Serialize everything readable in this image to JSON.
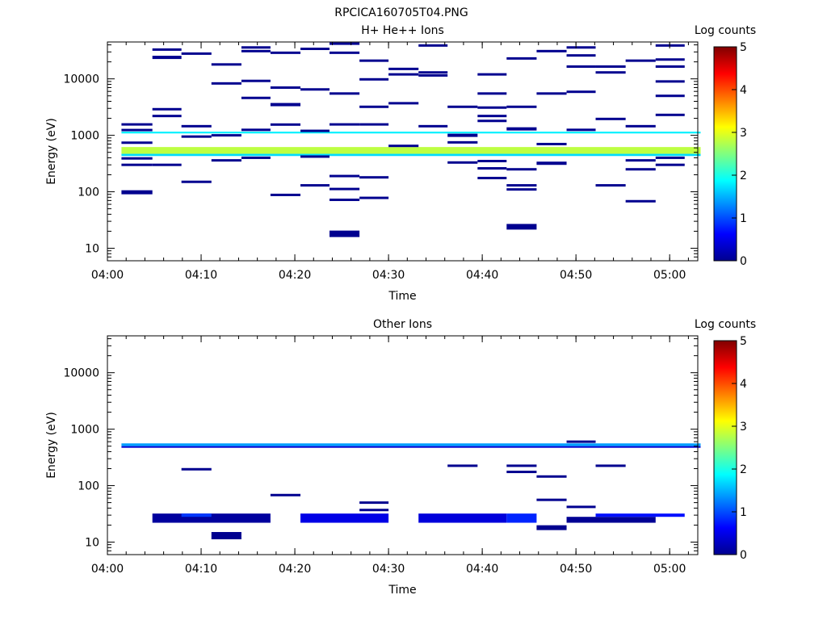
{
  "file_title": "RPCICA160705T04.PNG",
  "chart_data": [
    {
      "type": "heatmap",
      "title": "H+ He++ Ions",
      "xlabel": "Time",
      "ylabel": "Energy (eV)",
      "y_scale": "log",
      "ylim": [
        6,
        45000
      ],
      "xlim": [
        "04:00",
        "05:03"
      ],
      "x_ticks": [
        "04:00",
        "04:10",
        "04:20",
        "04:30",
        "04:40",
        "04:50",
        "05:00"
      ],
      "y_ticks": [
        "10",
        "100",
        "1000",
        "10000"
      ],
      "colorbar": {
        "label": "Log counts",
        "min": 0,
        "max": 5,
        "ticks": [
          "0",
          "1",
          "2",
          "3",
          "4",
          "5"
        ]
      },
      "bands": [
        {
          "t0": 1.5,
          "t1": 63.3,
          "e0": 470,
          "e1": 620,
          "log_counts": 2.8
        },
        {
          "t0": 1.5,
          "t1": 63.3,
          "e0": 1080,
          "e1": 1160,
          "log_counts": 1.8
        },
        {
          "t0": 1.5,
          "t1": 63.3,
          "e0": 430,
          "e1": 470,
          "log_counts": 1.7
        }
      ],
      "segments": [
        {
          "t0": 1.5,
          "t1": 4.8,
          "e": 1560
        },
        {
          "t0": 1.5,
          "t1": 4.8,
          "e": 1240
        },
        {
          "t0": 1.5,
          "t1": 4.8,
          "e": 740
        },
        {
          "t0": 1.5,
          "t1": 4.8,
          "e": 390
        },
        {
          "t0": 1.5,
          "t1": 4.8,
          "e": 300
        },
        {
          "t0": 1.5,
          "t1": 4.8,
          "e": 98,
          "w": 5
        },
        {
          "t0": 4.8,
          "t1": 7.9,
          "e": 33000
        },
        {
          "t0": 4.8,
          "t1": 7.9,
          "e": 24000,
          "w": 4
        },
        {
          "t0": 4.8,
          "t1": 7.9,
          "e": 2900
        },
        {
          "t0": 4.8,
          "t1": 7.9,
          "e": 2200
        },
        {
          "t0": 4.8,
          "t1": 7.9,
          "e": 300
        },
        {
          "t0": 7.9,
          "t1": 11.1,
          "e": 28000
        },
        {
          "t0": 7.9,
          "t1": 11.1,
          "e": 1450
        },
        {
          "t0": 7.9,
          "t1": 11.1,
          "e": 950
        },
        {
          "t0": 7.9,
          "t1": 11.1,
          "e": 150
        },
        {
          "t0": 11.1,
          "t1": 14.3,
          "e": 18000
        },
        {
          "t0": 11.1,
          "t1": 14.3,
          "e": 8300
        },
        {
          "t0": 11.1,
          "t1": 14.3,
          "e": 1000
        },
        {
          "t0": 11.1,
          "t1": 14.3,
          "e": 360
        },
        {
          "t0": 14.3,
          "t1": 17.4,
          "e": 36000
        },
        {
          "t0": 14.3,
          "t1": 17.4,
          "e": 31000
        },
        {
          "t0": 14.3,
          "t1": 17.4,
          "e": 4600
        },
        {
          "t0": 14.3,
          "t1": 17.4,
          "e": 9200
        },
        {
          "t0": 14.3,
          "t1": 17.4,
          "e": 1250
        },
        {
          "t0": 14.3,
          "t1": 17.4,
          "e": 400
        },
        {
          "t0": 17.4,
          "t1": 20.6,
          "e": 29000
        },
        {
          "t0": 17.4,
          "t1": 20.6,
          "e": 7000
        },
        {
          "t0": 17.4,
          "t1": 20.6,
          "e": 3500,
          "w": 4
        },
        {
          "t0": 17.4,
          "t1": 20.6,
          "e": 1550
        },
        {
          "t0": 17.4,
          "t1": 20.6,
          "e": 88
        },
        {
          "t0": 20.6,
          "t1": 23.7,
          "e": 34000
        },
        {
          "t0": 20.6,
          "t1": 23.7,
          "e": 6500
        },
        {
          "t0": 20.6,
          "t1": 23.7,
          "e": 1200
        },
        {
          "t0": 20.6,
          "t1": 23.7,
          "e": 420
        },
        {
          "t0": 20.6,
          "t1": 23.7,
          "e": 130
        },
        {
          "t0": 23.7,
          "t1": 26.9,
          "e": 42000
        },
        {
          "t0": 23.7,
          "t1": 26.9,
          "e": 29000
        },
        {
          "t0": 23.7,
          "t1": 26.9,
          "e": 5500
        },
        {
          "t0": 23.7,
          "t1": 26.9,
          "e": 1560
        },
        {
          "t0": 23.7,
          "t1": 26.9,
          "e": 190
        },
        {
          "t0": 23.7,
          "t1": 26.9,
          "e": 112
        },
        {
          "t0": 23.7,
          "t1": 26.9,
          "e": 72
        },
        {
          "t0": 23.7,
          "t1": 26.9,
          "e": 18,
          "w": 8
        },
        {
          "t0": 26.9,
          "t1": 30.0,
          "e": 21000
        },
        {
          "t0": 26.9,
          "t1": 30.0,
          "e": 9800
        },
        {
          "t0": 26.9,
          "t1": 30.0,
          "e": 3200
        },
        {
          "t0": 26.9,
          "t1": 30.0,
          "e": 1560
        },
        {
          "t0": 26.9,
          "t1": 30.0,
          "e": 180
        },
        {
          "t0": 26.9,
          "t1": 30.0,
          "e": 78
        },
        {
          "t0": 30.0,
          "t1": 33.2,
          "e": 15000
        },
        {
          "t0": 30.0,
          "t1": 33.2,
          "e": 12000
        },
        {
          "t0": 30.0,
          "t1": 33.2,
          "e": 3700
        },
        {
          "t0": 30.0,
          "t1": 33.2,
          "e": 650
        },
        {
          "t0": 33.2,
          "t1": 36.3,
          "e": 39000
        },
        {
          "t0": 33.2,
          "t1": 36.3,
          "e": 13000
        },
        {
          "t0": 33.2,
          "t1": 36.3,
          "e": 11500
        },
        {
          "t0": 33.2,
          "t1": 36.3,
          "e": 1450
        },
        {
          "t0": 36.3,
          "t1": 39.5,
          "e": 3200
        },
        {
          "t0": 36.3,
          "t1": 39.5,
          "e": 1000,
          "w": 4
        },
        {
          "t0": 36.3,
          "t1": 39.5,
          "e": 750
        },
        {
          "t0": 36.3,
          "t1": 39.5,
          "e": 330
        },
        {
          "t0": 39.5,
          "t1": 42.6,
          "e": 12000
        },
        {
          "t0": 39.5,
          "t1": 42.6,
          "e": 5500
        },
        {
          "t0": 39.5,
          "t1": 42.6,
          "e": 3100
        },
        {
          "t0": 39.5,
          "t1": 42.6,
          "e": 2200
        },
        {
          "t0": 39.5,
          "t1": 42.6,
          "e": 1800
        },
        {
          "t0": 39.5,
          "t1": 42.6,
          "e": 350
        },
        {
          "t0": 39.5,
          "t1": 42.6,
          "e": 260
        },
        {
          "t0": 39.5,
          "t1": 42.6,
          "e": 175
        },
        {
          "t0": 42.6,
          "t1": 45.8,
          "e": 23000
        },
        {
          "t0": 42.6,
          "t1": 45.8,
          "e": 3200
        },
        {
          "t0": 42.6,
          "t1": 45.8,
          "e": 1300,
          "w": 4
        },
        {
          "t0": 42.6,
          "t1": 45.8,
          "e": 250
        },
        {
          "t0": 42.6,
          "t1": 45.8,
          "e": 130
        },
        {
          "t0": 42.6,
          "t1": 45.8,
          "e": 110
        },
        {
          "t0": 42.6,
          "t1": 45.8,
          "e": 24,
          "w": 7
        },
        {
          "t0": 45.8,
          "t1": 49.0,
          "e": 31000
        },
        {
          "t0": 45.8,
          "t1": 49.0,
          "e": 5500
        },
        {
          "t0": 45.8,
          "t1": 49.0,
          "e": 700
        },
        {
          "t0": 45.8,
          "t1": 49.0,
          "e": 320,
          "w": 4
        },
        {
          "t0": 49.0,
          "t1": 52.1,
          "e": 36000
        },
        {
          "t0": 49.0,
          "t1": 52.1,
          "e": 26000
        },
        {
          "t0": 49.0,
          "t1": 52.1,
          "e": 16500
        },
        {
          "t0": 49.0,
          "t1": 52.1,
          "e": 5900
        },
        {
          "t0": 49.0,
          "t1": 52.1,
          "e": 1250
        },
        {
          "t0": 52.1,
          "t1": 55.3,
          "e": 16500
        },
        {
          "t0": 52.1,
          "t1": 55.3,
          "e": 13000
        },
        {
          "t0": 52.1,
          "t1": 55.3,
          "e": 1950
        },
        {
          "t0": 52.1,
          "t1": 55.3,
          "e": 130
        },
        {
          "t0": 55.3,
          "t1": 58.5,
          "e": 21000
        },
        {
          "t0": 55.3,
          "t1": 58.5,
          "e": 1450
        },
        {
          "t0": 55.3,
          "t1": 58.5,
          "e": 360
        },
        {
          "t0": 55.3,
          "t1": 58.5,
          "e": 250
        },
        {
          "t0": 55.3,
          "t1": 58.5,
          "e": 68
        },
        {
          "t0": 58.5,
          "t1": 61.6,
          "e": 39000
        },
        {
          "t0": 58.5,
          "t1": 61.6,
          "e": 22000
        },
        {
          "t0": 58.5,
          "t1": 61.6,
          "e": 16500
        },
        {
          "t0": 58.5,
          "t1": 61.6,
          "e": 9000
        },
        {
          "t0": 58.5,
          "t1": 61.6,
          "e": 5000
        },
        {
          "t0": 58.5,
          "t1": 61.6,
          "e": 2300
        },
        {
          "t0": 58.5,
          "t1": 61.6,
          "e": 400
        },
        {
          "t0": 58.5,
          "t1": 61.6,
          "e": 300
        }
      ]
    },
    {
      "type": "heatmap",
      "title": "Other Ions",
      "xlabel": "Time",
      "ylabel": "Energy (eV)",
      "y_scale": "log",
      "ylim": [
        6,
        45000
      ],
      "xlim": [
        "04:00",
        "05:03"
      ],
      "x_ticks": [
        "04:00",
        "04:10",
        "04:20",
        "04:30",
        "04:40",
        "04:50",
        "05:00"
      ],
      "y_ticks": [
        "10",
        "100",
        "1000",
        "10000"
      ],
      "colorbar": {
        "label": "Log counts",
        "min": 0,
        "max": 5,
        "ticks": [
          "0",
          "1",
          "2",
          "3",
          "4",
          "5"
        ]
      },
      "bands": [
        {
          "t0": 1.5,
          "t1": 63.3,
          "e0": 500,
          "e1": 560,
          "log_counts": 1.4
        },
        {
          "t0": 1.5,
          "t1": 63.3,
          "e0": 470,
          "e1": 500,
          "log_counts": 0.4
        },
        {
          "t0": 4.8,
          "t1": 17.4,
          "e0": 22,
          "e1": 32,
          "log_counts": 0.15
        },
        {
          "t0": 7.9,
          "t1": 11.1,
          "e0": 28,
          "e1": 32,
          "log_counts": 0.9
        },
        {
          "t0": 20.6,
          "t1": 30.0,
          "e0": 22,
          "e1": 32,
          "log_counts": 0.5
        },
        {
          "t0": 33.2,
          "t1": 42.6,
          "e0": 22,
          "e1": 32,
          "log_counts": 0.45
        },
        {
          "t0": 42.6,
          "t1": 45.8,
          "e0": 22,
          "e1": 32,
          "log_counts": 0.8
        },
        {
          "t0": 49.0,
          "t1": 58.5,
          "e0": 22,
          "e1": 28,
          "log_counts": 0.1
        },
        {
          "t0": 52.1,
          "t1": 61.6,
          "e0": 28,
          "e1": 32,
          "log_counts": 0.7
        }
      ],
      "segments": [
        {
          "t0": 7.9,
          "t1": 11.1,
          "e": 195
        },
        {
          "t0": 11.1,
          "t1": 14.3,
          "e": 13,
          "w": 9
        },
        {
          "t0": 17.4,
          "t1": 20.6,
          "e": 68
        },
        {
          "t0": 26.9,
          "t1": 30.0,
          "e": 50
        },
        {
          "t0": 26.9,
          "t1": 30.0,
          "e": 37
        },
        {
          "t0": 36.3,
          "t1": 39.5,
          "e": 225
        },
        {
          "t0": 42.6,
          "t1": 45.8,
          "e": 225
        },
        {
          "t0": 42.6,
          "t1": 45.8,
          "e": 175
        },
        {
          "t0": 45.8,
          "t1": 49.0,
          "e": 145
        },
        {
          "t0": 45.8,
          "t1": 49.0,
          "e": 56
        },
        {
          "t0": 45.8,
          "t1": 49.0,
          "e": 18,
          "w": 6
        },
        {
          "t0": 49.0,
          "t1": 52.1,
          "e": 42
        },
        {
          "t0": 49.0,
          "t1": 52.1,
          "e": 600
        },
        {
          "t0": 52.1,
          "t1": 55.3,
          "e": 225
        }
      ]
    }
  ]
}
